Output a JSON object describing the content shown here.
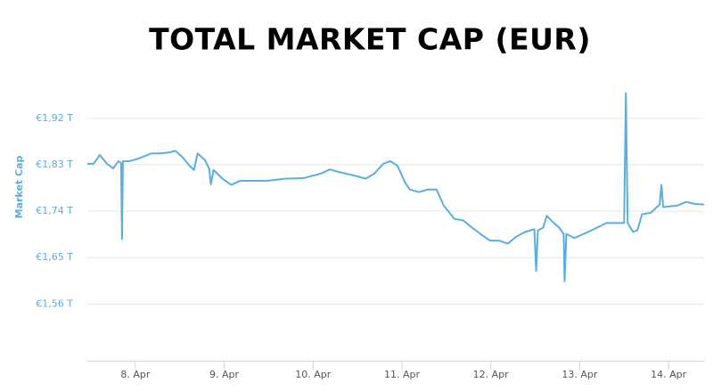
{
  "chart_data": {
    "type": "line",
    "title": "TOTAL MARKET CAP (EUR)",
    "y_label": "Market Cap",
    "xlim": [
      7.46,
      14.4
    ],
    "xticks": [
      {
        "value": 8,
        "label": "8. Apr"
      },
      {
        "value": 9,
        "label": "9. Apr"
      },
      {
        "value": 10,
        "label": "10. Apr"
      },
      {
        "value": 11,
        "label": "11. Apr"
      },
      {
        "value": 12,
        "label": "12. Apr"
      },
      {
        "value": 13,
        "label": "13. Apr"
      },
      {
        "value": 14,
        "label": "14. Apr"
      }
    ],
    "ylim": [
      1.45,
      2.02
    ],
    "yticks": [
      {
        "value": 1.56,
        "label": "€1,56 T"
      },
      {
        "value": 1.65,
        "label": "€1,65 T"
      },
      {
        "value": 1.74,
        "label": "€1,74 T"
      },
      {
        "value": 1.83,
        "label": "€1,83 T"
      },
      {
        "value": 1.92,
        "label": "€1,92 T"
      }
    ],
    "grid": true,
    "series": [
      {
        "name": "Market Cap",
        "color": "#5aaee0",
        "x": [
          7.46,
          7.53,
          7.6,
          7.68,
          7.75,
          7.81,
          7.84,
          7.85,
          7.86,
          7.93,
          8.0,
          8.08,
          8.18,
          8.28,
          8.38,
          8.45,
          8.53,
          8.61,
          8.66,
          8.7,
          8.78,
          8.83,
          8.85,
          8.88,
          8.98,
          9.08,
          9.18,
          9.28,
          9.48,
          9.69,
          9.89,
          10.09,
          10.19,
          10.29,
          10.49,
          10.59,
          10.69,
          10.79,
          10.87,
          10.95,
          11.04,
          11.09,
          11.19,
          11.29,
          11.39,
          11.47,
          11.59,
          11.69,
          11.79,
          11.89,
          11.99,
          12.09,
          12.19,
          12.29,
          12.39,
          12.49,
          12.51,
          12.53,
          12.59,
          12.63,
          12.69,
          12.77,
          12.82,
          12.83,
          12.85,
          12.94,
          13.1,
          13.3,
          13.5,
          13.52,
          13.54,
          13.6,
          13.65,
          13.7,
          13.8,
          13.9,
          13.92,
          13.94,
          14.1,
          14.2,
          14.3,
          14.4
        ],
        "values": [
          1.832,
          1.832,
          1.849,
          1.832,
          1.823,
          1.837,
          1.833,
          1.686,
          1.837,
          1.837,
          1.84,
          1.845,
          1.852,
          1.852,
          1.854,
          1.857,
          1.845,
          1.828,
          1.82,
          1.852,
          1.84,
          1.823,
          1.792,
          1.82,
          1.803,
          1.791,
          1.799,
          1.799,
          1.799,
          1.803,
          1.804,
          1.813,
          1.821,
          1.816,
          1.808,
          1.803,
          1.813,
          1.832,
          1.837,
          1.828,
          1.794,
          1.782,
          1.777,
          1.782,
          1.782,
          1.751,
          1.725,
          1.722,
          1.708,
          1.695,
          1.683,
          1.683,
          1.677,
          1.691,
          1.7,
          1.705,
          1.624,
          1.703,
          1.708,
          1.731,
          1.72,
          1.708,
          1.696,
          1.604,
          1.696,
          1.688,
          1.7,
          1.717,
          1.717,
          1.969,
          1.717,
          1.7,
          1.703,
          1.734,
          1.737,
          1.753,
          1.791,
          1.748,
          1.751,
          1.758,
          1.754,
          1.753
        ]
      }
    ]
  }
}
